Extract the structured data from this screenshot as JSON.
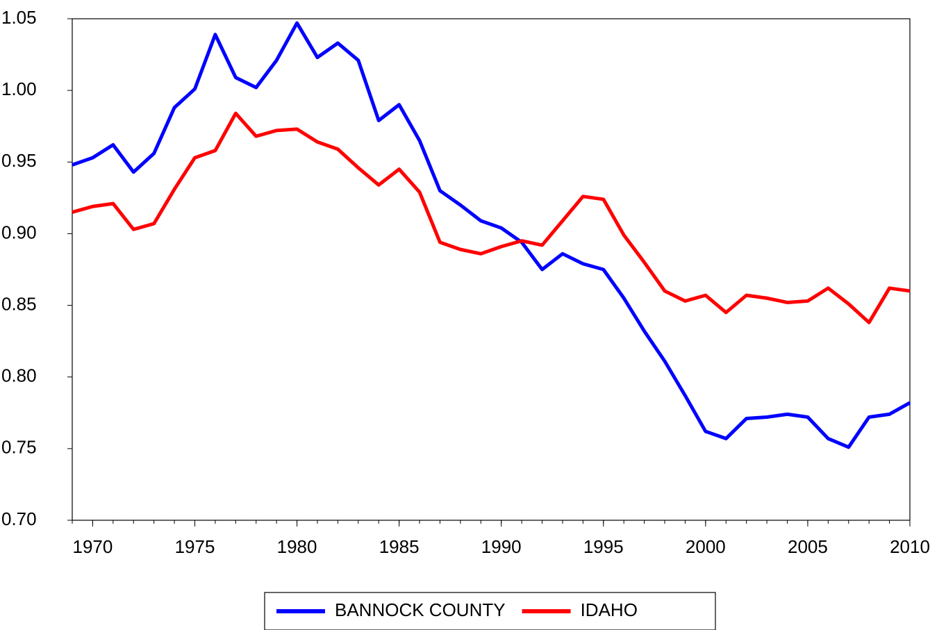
{
  "chart_data": {
    "type": "line",
    "x": [
      1969,
      1970,
      1971,
      1972,
      1973,
      1974,
      1975,
      1976,
      1977,
      1978,
      1979,
      1980,
      1981,
      1982,
      1983,
      1984,
      1985,
      1986,
      1987,
      1988,
      1989,
      1990,
      1991,
      1992,
      1993,
      1994,
      1995,
      1996,
      1997,
      1998,
      1999,
      2000,
      2001,
      2002,
      2003,
      2004,
      2005,
      2006,
      2007,
      2008,
      2009,
      2010
    ],
    "series": [
      {
        "name": "BANNOCK COUNTY",
        "color": "#0000ff",
        "values": [
          0.948,
          0.953,
          0.962,
          0.943,
          0.956,
          0.988,
          1.001,
          1.039,
          1.009,
          1.002,
          1.021,
          1.047,
          1.023,
          1.033,
          1.021,
          0.979,
          0.99,
          0.965,
          0.93,
          0.92,
          0.909,
          0.904,
          0.894,
          0.875,
          0.886,
          0.879,
          0.875,
          0.855,
          0.832,
          0.811,
          0.787,
          0.762,
          0.757,
          0.771,
          0.772,
          0.774,
          0.772,
          0.757,
          0.751,
          0.772,
          0.774,
          0.782
        ]
      },
      {
        "name": "IDAHO",
        "color": "#ff0000",
        "values": [
          0.915,
          0.919,
          0.921,
          0.903,
          0.907,
          0.931,
          0.953,
          0.958,
          0.984,
          0.968,
          0.972,
          0.973,
          0.964,
          0.959,
          0.946,
          0.934,
          0.945,
          0.929,
          0.894,
          0.889,
          0.886,
          0.891,
          0.895,
          0.892,
          0.909,
          0.926,
          0.924,
          0.899,
          0.88,
          0.86,
          0.853,
          0.857,
          0.845,
          0.857,
          0.855,
          0.852,
          0.853,
          0.862,
          0.851,
          0.838,
          0.862,
          0.86
        ]
      }
    ],
    "xlim": [
      1969,
      2010
    ],
    "xticks": [
      1970,
      1975,
      1980,
      1985,
      1990,
      1995,
      2000,
      2005,
      2010
    ],
    "ylim": [
      0.7,
      1.05
    ],
    "yticks": [
      {
        "value": 0.7,
        "label": "0.70"
      },
      0.75,
      {
        "value": 0.8,
        "label": "0.80"
      },
      0.85,
      {
        "value": 0.9,
        "label": "0.90"
      },
      0.95,
      {
        "value": 1.0,
        "label": "1.00"
      },
      1.05
    ],
    "legend": "bottom"
  }
}
